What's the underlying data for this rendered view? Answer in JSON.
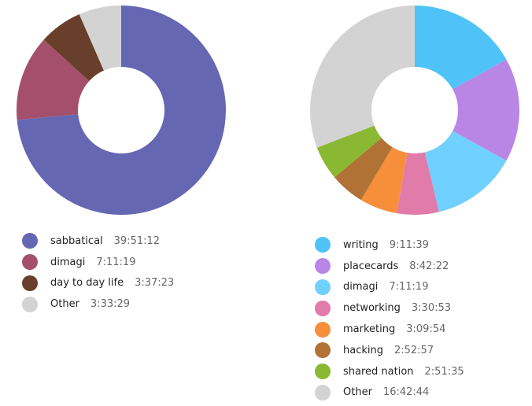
{
  "chart_data": [
    {
      "type": "pie",
      "donut": true,
      "legend": "bottom",
      "series": [
        {
          "label": "sabbatical",
          "duration": "39:51:12",
          "color": "#6667b3"
        },
        {
          "label": "dimagi",
          "duration": "7:11:19",
          "color": "#a4506c"
        },
        {
          "label": "day to day life",
          "duration": "3:37:23",
          "color": "#683f2a"
        },
        {
          "label": "Other",
          "duration": "3:33:29",
          "color": "#d3d3d3"
        }
      ]
    },
    {
      "type": "pie",
      "donut": true,
      "legend": "bottom",
      "series": [
        {
          "label": "writing",
          "duration": "9:11:39",
          "color": "#4fc3f7"
        },
        {
          "label": "placecards",
          "duration": "8:42:22",
          "color": "#ba86e6"
        },
        {
          "label": "dimagi",
          "duration": "7:11:19",
          "color": "#70d0ff"
        },
        {
          "label": "networking",
          "duration": "3:30:53",
          "color": "#e07baa"
        },
        {
          "label": "marketing",
          "duration": "3:09:54",
          "color": "#f78f3a"
        },
        {
          "label": "hacking",
          "duration": "2:52:57",
          "color": "#b07335"
        },
        {
          "label": "shared nation",
          "duration": "2:51:35",
          "color": "#8bb832"
        },
        {
          "label": "Other",
          "duration": "16:42:44",
          "color": "#d3d3d3"
        }
      ]
    }
  ]
}
